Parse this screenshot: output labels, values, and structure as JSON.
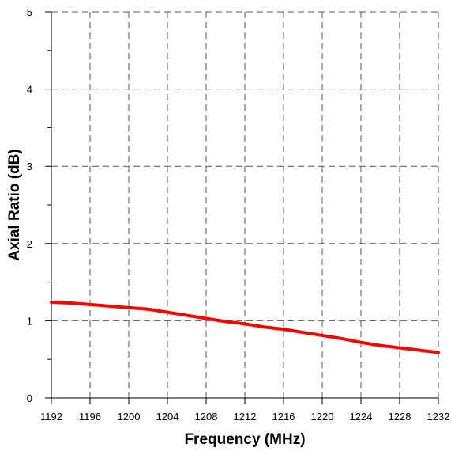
{
  "chart_data": {
    "type": "line",
    "xlabel": "Frequency (MHz)",
    "ylabel": "Axial Ratio (dB)",
    "xlim": [
      1192,
      1232
    ],
    "ylim": [
      0,
      5
    ],
    "x_ticks": [
      1192,
      1196,
      1200,
      1204,
      1208,
      1212,
      1216,
      1220,
      1224,
      1228,
      1232
    ],
    "y_ticks": [
      0,
      1,
      2,
      3,
      4,
      5
    ],
    "y_minor_step": 0.5,
    "grid": true,
    "series": [
      {
        "color": "#ff0000",
        "x": [
          1192,
          1194,
          1196,
          1198,
          1200,
          1202,
          1204,
          1206,
          1208,
          1210,
          1212,
          1214,
          1216,
          1218,
          1220,
          1222,
          1224,
          1226,
          1228,
          1230,
          1232
        ],
        "y": [
          1.24,
          1.23,
          1.21,
          1.19,
          1.17,
          1.15,
          1.11,
          1.07,
          1.03,
          0.99,
          0.96,
          0.92,
          0.89,
          0.85,
          0.81,
          0.77,
          0.72,
          0.68,
          0.65,
          0.62,
          0.59
        ]
      }
    ]
  }
}
